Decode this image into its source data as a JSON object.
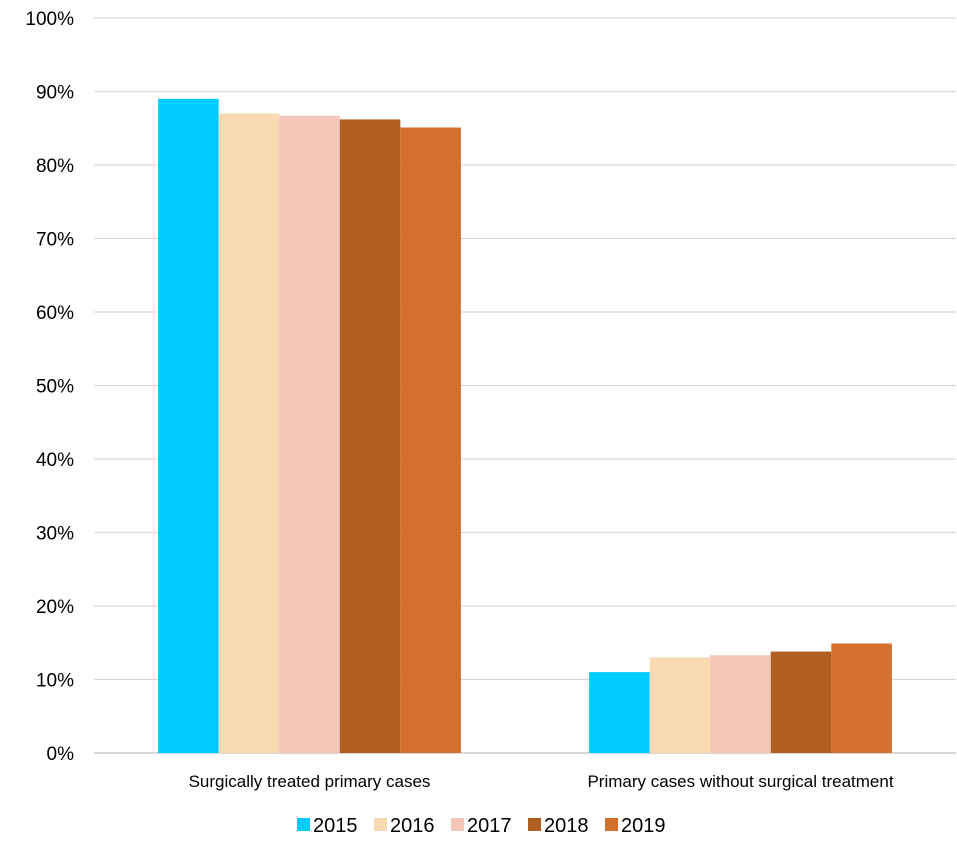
{
  "chart_data": {
    "type": "bar",
    "categories": [
      "Surgically treated primary cases",
      "Primary cases without surgical treatment"
    ],
    "series": [
      {
        "name": "2015",
        "values": [
          89,
          11
        ],
        "color": "#00CCFF"
      },
      {
        "name": "2016",
        "values": [
          87,
          13
        ],
        "color": "#F9D9B1"
      },
      {
        "name": "2017",
        "values": [
          86.7,
          13.3
        ],
        "color": "#F3C6B8"
      },
      {
        "name": "2018",
        "values": [
          86.2,
          13.8
        ],
        "color": "#B15E22"
      },
      {
        "name": "2019",
        "values": [
          85.1,
          14.9
        ],
        "color": "#D2702C"
      }
    ],
    "ylim": [
      0,
      100
    ],
    "yticks": [
      "0%",
      "10%",
      "20%",
      "30%",
      "40%",
      "50%",
      "60%",
      "70%",
      "80%",
      "90%",
      "100%"
    ],
    "grid": true,
    "legend_position": "bottom",
    "gridline_color": "#D9D9D9"
  }
}
